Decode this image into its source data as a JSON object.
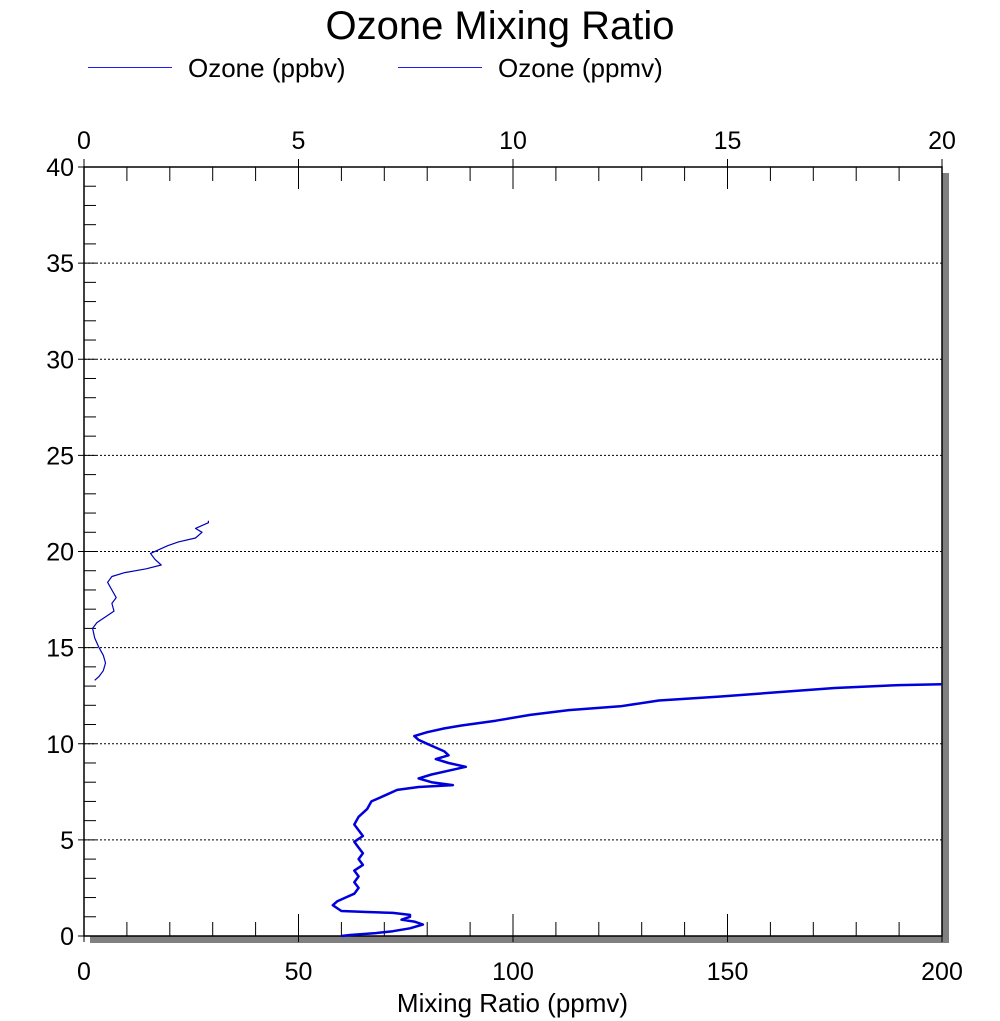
{
  "chart_data": {
    "type": "line",
    "title": "Ozone Mixing Ratio",
    "xlabel": "Mixing Ratio (ppmv)",
    "ylabel": "",
    "legend": {
      "placement": "top-left"
    },
    "grid": {
      "horizontal": true,
      "style": "dotted"
    },
    "axes": {
      "y": {
        "range": [
          0,
          40
        ],
        "ticks": [
          "0",
          "5",
          "10",
          "15",
          "20",
          "25",
          "30",
          "35",
          "40"
        ],
        "minor_step": 1
      },
      "x_bottom": {
        "range": [
          0,
          200
        ],
        "ticks": [
          "0",
          "50",
          "100",
          "150",
          "200"
        ],
        "minor_step": 10
      },
      "x_top": {
        "range": [
          0,
          20
        ],
        "ticks": [
          "0",
          "5",
          "10",
          "15",
          "20"
        ],
        "minor_step": 1
      }
    },
    "series": [
      {
        "name": "Ozone (ppbv)",
        "color": "#0000dd",
        "axis": "x_bottom",
        "points": [
          [
            60,
            0.0
          ],
          [
            62,
            0.05
          ],
          [
            68,
            0.15
          ],
          [
            72,
            0.25
          ],
          [
            76,
            0.4
          ],
          [
            79,
            0.6
          ],
          [
            77,
            0.75
          ],
          [
            74,
            0.85
          ],
          [
            76,
            1.0
          ],
          [
            76,
            1.1
          ],
          [
            72,
            1.2
          ],
          [
            66,
            1.25
          ],
          [
            60,
            1.3
          ],
          [
            59,
            1.45
          ],
          [
            58,
            1.6
          ],
          [
            59,
            1.8
          ],
          [
            61,
            2.0
          ],
          [
            63,
            2.2
          ],
          [
            64,
            2.5
          ],
          [
            63,
            2.8
          ],
          [
            64,
            3.1
          ],
          [
            63,
            3.4
          ],
          [
            65,
            3.7
          ],
          [
            64,
            4.0
          ],
          [
            65,
            4.3
          ],
          [
            64,
            4.6
          ],
          [
            63,
            4.9
          ],
          [
            65,
            5.2
          ],
          [
            64,
            5.5
          ],
          [
            63,
            5.8
          ],
          [
            64,
            6.2
          ],
          [
            66,
            6.6
          ],
          [
            67,
            7.0
          ],
          [
            70,
            7.3
          ],
          [
            73,
            7.6
          ],
          [
            78,
            7.75
          ],
          [
            86,
            7.85
          ],
          [
            81,
            8.0
          ],
          [
            78,
            8.2
          ],
          [
            81,
            8.4
          ],
          [
            85,
            8.6
          ],
          [
            89,
            8.8
          ],
          [
            85,
            9.0
          ],
          [
            82,
            9.2
          ],
          [
            85,
            9.4
          ],
          [
            84,
            9.6
          ],
          [
            82,
            9.8
          ],
          [
            80,
            10.0
          ],
          [
            78,
            10.2
          ],
          [
            77,
            10.4
          ],
          [
            80,
            10.6
          ],
          [
            84,
            10.8
          ],
          [
            88,
            10.95
          ],
          [
            96,
            11.2
          ],
          [
            104,
            11.5
          ],
          [
            113,
            11.75
          ],
          [
            125,
            11.95
          ],
          [
            134,
            12.25
          ],
          [
            148,
            12.45
          ],
          [
            160,
            12.65
          ],
          [
            175,
            12.9
          ],
          [
            190,
            13.05
          ],
          [
            200,
            13.1
          ]
        ]
      },
      {
        "name": "Ozone (ppmv)",
        "color": "#0000bb",
        "axis": "x_top",
        "points": [
          [
            0.25,
            13.3
          ],
          [
            0.35,
            13.5
          ],
          [
            0.45,
            13.8
          ],
          [
            0.5,
            14.2
          ],
          [
            0.45,
            14.6
          ],
          [
            0.35,
            15.0
          ],
          [
            0.25,
            15.5
          ],
          [
            0.2,
            16.0
          ],
          [
            0.3,
            16.3
          ],
          [
            0.5,
            16.6
          ],
          [
            0.7,
            16.9
          ],
          [
            0.65,
            17.3
          ],
          [
            0.75,
            17.6
          ],
          [
            0.65,
            18.0
          ],
          [
            0.55,
            18.4
          ],
          [
            0.65,
            18.7
          ],
          [
            0.95,
            18.9
          ],
          [
            1.45,
            19.1
          ],
          [
            1.8,
            19.3
          ],
          [
            1.65,
            19.6
          ],
          [
            1.55,
            19.9
          ],
          [
            1.75,
            20.1
          ],
          [
            1.95,
            20.3
          ],
          [
            2.2,
            20.5
          ],
          [
            2.6,
            20.7
          ],
          [
            2.75,
            21.0
          ],
          [
            2.6,
            21.2
          ],
          [
            2.9,
            21.5
          ],
          [
            2.9,
            21.6
          ]
        ]
      }
    ]
  }
}
